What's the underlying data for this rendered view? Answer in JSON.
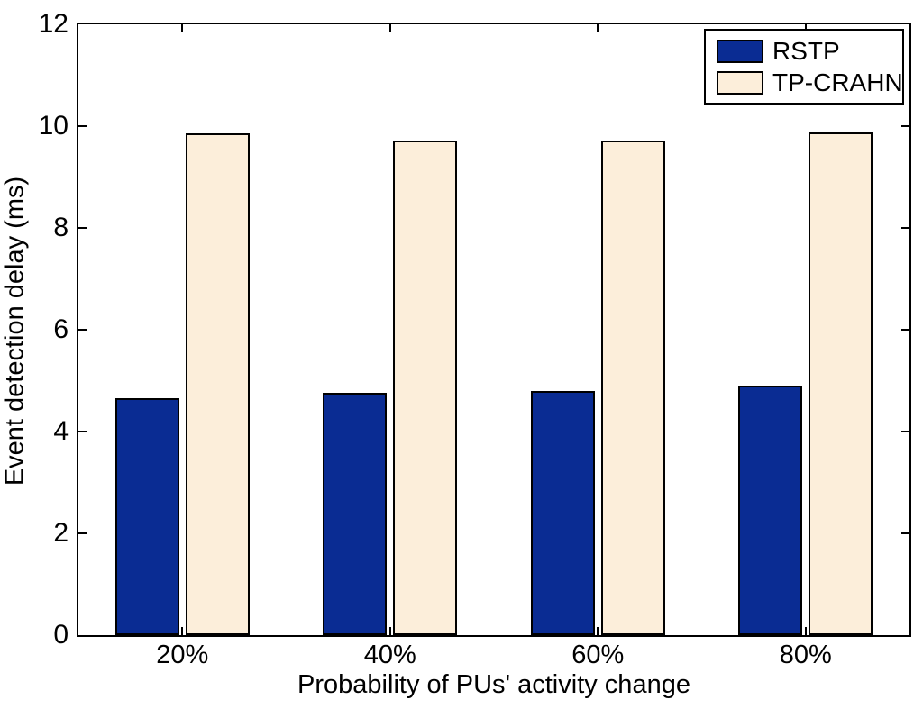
{
  "chart_data": {
    "type": "bar",
    "title": "",
    "categories": [
      "20%",
      "40%",
      "60%",
      "80%"
    ],
    "series": [
      {
        "name": "RSTP",
        "color": "#0A2C93",
        "values": [
          4.66,
          4.77,
          4.8,
          4.91
        ]
      },
      {
        "name": "TP-CRAHN",
        "color": "#FCEEDA",
        "values": [
          9.85,
          9.72,
          9.72,
          9.87
        ]
      }
    ],
    "xlabel": "Probability of PUs' activity change",
    "ylabel": "Event detection delay (ms)",
    "ylim": [
      0,
      12
    ],
    "yticks": [
      0,
      2,
      4,
      6,
      8,
      10,
      12
    ],
    "grid": false,
    "legend_position": "top-right",
    "bar_edge_color": "#000000",
    "axis_color": "#000000",
    "background_color": "#ffffff"
  }
}
